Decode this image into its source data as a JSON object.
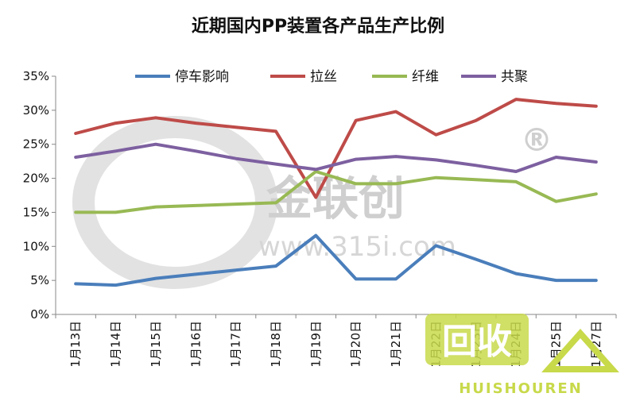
{
  "chart_data": {
    "type": "line",
    "title": "近期国内PP装置各产品生产比例",
    "categories": [
      "1月13日",
      "1月14日",
      "1月15日",
      "1月16日",
      "1月17日",
      "1月18日",
      "1月19日",
      "1月20日",
      "1月21日",
      "1月22日",
      "1月23日",
      "1月24日",
      "1月25日",
      "1月27日"
    ],
    "ylim": [
      0,
      35
    ],
    "yticks": [
      "0%",
      "5%",
      "10%",
      "15%",
      "20%",
      "25%",
      "30%",
      "35%"
    ],
    "legend_position": "top",
    "series": [
      {
        "name": "停车影响",
        "color": "#4a7ebb",
        "values": [
          4.5,
          4.3,
          5.3,
          5.9,
          6.5,
          7.1,
          11.6,
          5.2,
          5.2,
          10.1,
          8.1,
          6.0,
          5.0,
          5.0
        ]
      },
      {
        "name": "拉丝",
        "color": "#be4b48",
        "values": [
          26.6,
          28.1,
          28.9,
          28.1,
          27.5,
          26.9,
          17.2,
          28.5,
          29.8,
          26.4,
          28.5,
          31.6,
          31.0,
          30.6
        ]
      },
      {
        "name": "纤维",
        "color": "#98b954",
        "values": [
          15.0,
          15.0,
          15.8,
          16.0,
          16.2,
          16.4,
          21.0,
          19.2,
          19.2,
          20.1,
          19.8,
          19.5,
          16.6,
          17.7
        ]
      },
      {
        "name": "共聚",
        "color": "#7d60a0",
        "values": [
          23.1,
          24.0,
          25.0,
          24.0,
          22.9,
          22.1,
          21.3,
          22.8,
          23.2,
          22.7,
          21.9,
          21.0,
          23.1,
          22.4
        ]
      }
    ]
  },
  "watermark": {
    "brand": "金联创",
    "url": "www.315i.com",
    "mark": "®"
  },
  "corner_logo": {
    "text": "回收",
    "subtext": "HUISHOUREN"
  }
}
